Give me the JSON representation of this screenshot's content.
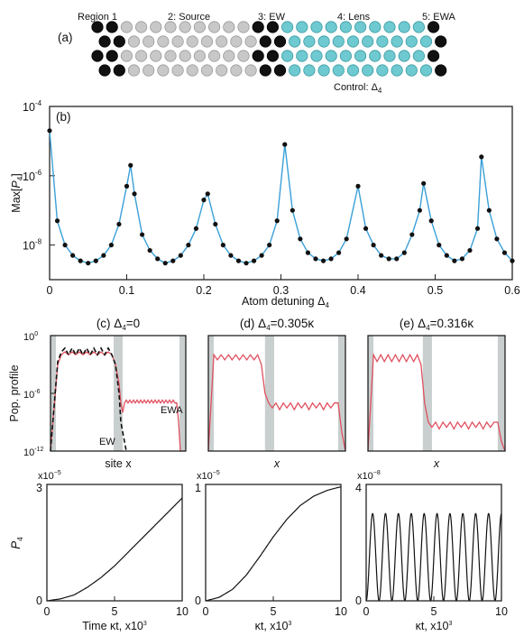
{
  "colors": {
    "black_atom": "#111111",
    "grey_atom": "#c8c8c8",
    "cyan_atom": "#6ec9d0",
    "blue_line": "#3aa0d8",
    "red_line": "#e0505f",
    "shade": "#c9cfcf"
  },
  "panel_a": {
    "label": "(a)",
    "regions": [
      "Region 1",
      "2: Source",
      "3: EW",
      "4: Lens",
      "5: EWA"
    ],
    "control": "Control: Δ",
    "control_sub": "4"
  },
  "panel_b": {
    "label": "(b)",
    "ylabel_pre": "Max[",
    "ylabel_var": "P",
    "ylabel_sub": "4",
    "ylabel_post": "]",
    "xlabel": "Atom detuning Δ",
    "xlabel_sub": "4",
    "yticks": [
      {
        "base": "10",
        "exp": "-4"
      },
      {
        "base": "10",
        "exp": "-6"
      },
      {
        "base": "10",
        "exp": "-8"
      }
    ],
    "xticks": [
      "0",
      "0.1",
      "0.2",
      "0.3",
      "0.4",
      "0.5",
      "0.6"
    ]
  },
  "panels_cde": [
    {
      "title": "(c) Δ",
      "title_sub": "4",
      "title_rest": "=0",
      "xlabel": "site x",
      "ylabel": "Pop. profile",
      "yticks": [
        {
          "base": "10",
          "exp": "0"
        },
        {
          "base": "10",
          "exp": "-6"
        },
        {
          "base": "10",
          "exp": "-12"
        }
      ],
      "ann_ewa": "EWA",
      "ann_ew": "EW"
    },
    {
      "title": "(d) Δ",
      "title_sub": "4",
      "title_rest": "=0.305κ",
      "xlabel": "x"
    },
    {
      "title": "(e) Δ",
      "title_sub": "4",
      "title_rest": "=0.316κ",
      "xlabel": "x"
    }
  ],
  "panels_fgh": [
    {
      "scale_base": "x10",
      "scale_exp": "−5",
      "ymax_label": "3",
      "ymin_label": "0",
      "ylabel": "P",
      "ylabel_sub": "4",
      "xlabel": "Time κt, x10",
      "xlabel_exp": "3",
      "xticks": [
        "0",
        "5",
        "10"
      ]
    },
    {
      "scale_base": "x10",
      "scale_exp": "−5",
      "ymax_label": "1",
      "ymin_label": "0",
      "xlabel": "κt, x10",
      "xlabel_exp": "3",
      "xticks": [
        "0",
        "5",
        "10"
      ]
    },
    {
      "scale_base": "x10",
      "scale_exp": "−8",
      "ymax_label": "4",
      "ymin_label": "0",
      "xlabel": "κt, x10",
      "xlabel_exp": "3",
      "xticks": [
        "0",
        "5",
        "10"
      ]
    }
  ],
  "chart_data": [
    {
      "type": "line",
      "title": "",
      "xlabel": "Atom detuning Δ4",
      "ylabel": "Max[P4]",
      "xlim": [
        0,
        0.6
      ],
      "ylim": [
        1e-09,
        0.0001
      ],
      "yscale": "log",
      "series": [
        {
          "marker": "dot",
          "color": "#3aa0d8",
          "x": [
            0,
            0.01,
            0.02,
            0.03,
            0.04,
            0.05,
            0.06,
            0.07,
            0.08,
            0.09,
            0.1,
            0.105,
            0.11,
            0.12,
            0.13,
            0.14,
            0.15,
            0.16,
            0.17,
            0.18,
            0.19,
            0.2,
            0.205,
            0.215,
            0.225,
            0.235,
            0.245,
            0.255,
            0.265,
            0.275,
            0.285,
            0.295,
            0.305,
            0.315,
            0.325,
            0.335,
            0.345,
            0.355,
            0.365,
            0.375,
            0.385,
            0.4,
            0.41,
            0.42,
            0.43,
            0.44,
            0.45,
            0.46,
            0.47,
            0.48,
            0.485,
            0.495,
            0.505,
            0.515,
            0.525,
            0.535,
            0.545,
            0.555,
            0.56,
            0.57,
            0.58,
            0.59,
            0.6
          ],
          "y": [
            2e-05,
            5e-08,
            1e-08,
            5e-09,
            3.5e-09,
            3e-09,
            3.5e-09,
            5e-09,
            1e-08,
            4e-08,
            5e-07,
            2e-06,
            3e-07,
            2e-08,
            7e-09,
            4e-09,
            3e-09,
            3.5e-09,
            5e-09,
            1e-08,
            3e-08,
            2e-07,
            3e-07,
            4e-08,
            1e-08,
            5e-09,
            3.5e-09,
            3e-09,
            3.5e-09,
            5e-09,
            1e-08,
            5e-08,
            8e-06,
            1e-07,
            1.5e-08,
            6e-09,
            4e-09,
            3.5e-09,
            4e-09,
            6e-09,
            1.5e-08,
            5e-07,
            3e-08,
            1e-08,
            5e-09,
            4e-09,
            4e-09,
            6e-09,
            2e-08,
            1e-07,
            6e-07,
            5e-08,
            1e-08,
            5e-09,
            3.5e-09,
            4e-09,
            7e-09,
            3e-08,
            3.5e-06,
            1e-07,
            1.5e-08,
            6e-09,
            3.5e-09
          ]
        }
      ]
    },
    {
      "type": "line",
      "title": "",
      "xlabel": "site x",
      "ylabel": "Pop. profile",
      "ylim": [
        1e-12,
        1
      ],
      "yscale": "log",
      "series": [
        {
          "style": "solid",
          "color": "#e0505f",
          "x": [
            0,
            0.08,
            0.12,
            0.16,
            0.2,
            0.24,
            0.28,
            0.32,
            0.36,
            0.4,
            0.44,
            0.48,
            0.52,
            0.56,
            0.6,
            0.64,
            0.68,
            0.72,
            0.76,
            0.78,
            0.8,
            0.82,
            0.84,
            0.86,
            0.88,
            0.9,
            0.92,
            0.94,
            0.96,
            0.98,
            1.0,
            1.02,
            1.04,
            1.06,
            1.08,
            1.1,
            1.12,
            1.14,
            1.16,
            1.18,
            1.2,
            1.22,
            1.24,
            1.26,
            1.28,
            1.3,
            1.32,
            1.34,
            1.36,
            1.38,
            1.4,
            1.42,
            1.44,
            1.46,
            1.48,
            1.5
          ],
          "y": [
            1e-12,
            0.001,
            0.01,
            0.02,
            0.01,
            0.02,
            0.01,
            0.02,
            0.01,
            0.02,
            0.01,
            0.02,
            0.01,
            0.02,
            0.01,
            0.02,
            0.01,
            0.001,
            1e-05,
            1e-07,
            1e-08,
            1e-07,
            2e-07,
            1e-07,
            2e-07,
            1e-07,
            2e-07,
            1e-07,
            2e-07,
            1e-07,
            2e-07,
            1e-07,
            2e-07,
            1e-07,
            2e-07,
            1e-07,
            2e-07,
            1e-07,
            2e-07,
            1e-07,
            2e-07,
            1e-07,
            2e-07,
            1e-07,
            2e-07,
            1e-07,
            2e-07,
            1e-07,
            2e-07,
            1e-07,
            1e-07,
            1e-09,
            1e-12,
            1e-12,
            1e-12,
            1e-12
          ]
        },
        {
          "style": "dashed",
          "color": "#111111",
          "x": [
            0,
            0.08,
            0.12,
            0.16,
            0.2,
            0.24,
            0.28,
            0.32,
            0.36,
            0.4,
            0.44,
            0.48,
            0.52,
            0.56,
            0.6,
            0.64,
            0.68,
            0.72,
            0.76,
            0.78,
            0.8,
            0.82,
            0.84
          ],
          "y": [
            1e-12,
            0.002,
            0.02,
            0.05,
            0.01,
            0.05,
            0.01,
            0.05,
            0.01,
            0.05,
            0.01,
            0.05,
            0.01,
            0.05,
            0.01,
            0.05,
            0.01,
            0.001,
            1e-06,
            1e-09,
            1e-10,
            1e-11,
            1e-12
          ]
        }
      ]
    },
    {
      "type": "line",
      "title": "",
      "xlabel": "x",
      "ylim": [
        1e-12,
        1
      ],
      "yscale": "log",
      "series": [
        {
          "style": "solid",
          "color": "#e0505f",
          "x": [
            0,
            0.06,
            0.1,
            0.14,
            0.18,
            0.22,
            0.26,
            0.3,
            0.34,
            0.38,
            0.42,
            0.46,
            0.5,
            0.54,
            0.58,
            0.62,
            0.66,
            0.7,
            0.74,
            0.78,
            0.82,
            0.86,
            0.9,
            0.94,
            0.98,
            1.02,
            1.06,
            1.1,
            1.14,
            1.18,
            1.22,
            1.26,
            1.3,
            1.34,
            1.38,
            1.42,
            1.46,
            1.5
          ],
          "y": [
            1e-12,
            0.01,
            0.003,
            0.01,
            0.003,
            0.01,
            0.003,
            0.01,
            0.003,
            0.01,
            0.003,
            0.01,
            0.003,
            0.01,
            0.001,
            1e-06,
            1e-07,
            3e-08,
            1e-07,
            2e-08,
            1e-07,
            3e-08,
            1e-07,
            2e-08,
            1e-07,
            3e-08,
            1e-07,
            2e-08,
            1e-07,
            3e-08,
            1e-07,
            2e-08,
            1e-07,
            3e-08,
            1e-07,
            1e-07,
            1e-10,
            1e-12
          ]
        }
      ]
    },
    {
      "type": "line",
      "title": "",
      "xlabel": "x",
      "ylim": [
        1e-12,
        1
      ],
      "yscale": "log",
      "series": [
        {
          "style": "solid",
          "color": "#e0505f",
          "x": [
            0,
            0.06,
            0.1,
            0.14,
            0.18,
            0.22,
            0.26,
            0.3,
            0.34,
            0.38,
            0.42,
            0.46,
            0.5,
            0.54,
            0.58,
            0.62,
            0.66,
            0.7,
            0.74,
            0.78,
            0.82,
            0.86,
            0.9,
            0.94,
            0.98,
            1.02,
            1.06,
            1.1,
            1.14,
            1.18,
            1.22,
            1.26,
            1.3,
            1.34,
            1.38,
            1.42,
            1.46,
            1.5
          ],
          "y": [
            1e-12,
            0.01,
            0.002,
            0.01,
            0.002,
            0.01,
            0.002,
            0.01,
            0.002,
            0.01,
            0.002,
            0.01,
            0.002,
            0.01,
            0.001,
            1e-07,
            1e-09,
            3e-10,
            1e-09,
            2e-10,
            1e-09,
            3e-10,
            1e-09,
            2e-10,
            1e-09,
            3e-10,
            1e-09,
            2e-10,
            1e-09,
            3e-10,
            1e-09,
            2e-10,
            1e-09,
            3e-10,
            1e-09,
            1e-09,
            1e-11,
            1e-12
          ]
        }
      ]
    },
    {
      "type": "line",
      "title": "",
      "xlabel": "Time κt, x10^3",
      "ylabel": "P4",
      "xlim": [
        0,
        10
      ],
      "ylim": [
        0,
        3
      ],
      "y_scale_factor": "x10^-5",
      "series": [
        {
          "color": "#111111",
          "x": [
            0,
            1,
            2,
            3,
            4,
            5,
            6,
            7,
            8,
            9,
            10
          ],
          "y": [
            0,
            0.05,
            0.15,
            0.35,
            0.6,
            0.9,
            1.25,
            1.6,
            1.95,
            2.3,
            2.65
          ]
        }
      ]
    },
    {
      "type": "line",
      "title": "",
      "xlabel": "κt, x10^3",
      "xlim": [
        0,
        10
      ],
      "ylim": [
        0,
        1
      ],
      "y_scale_factor": "x10^-5",
      "series": [
        {
          "color": "#111111",
          "x": [
            0,
            1,
            2,
            3,
            4,
            5,
            6,
            7,
            8,
            9,
            10
          ],
          "y": [
            0,
            0.03,
            0.1,
            0.22,
            0.38,
            0.55,
            0.7,
            0.82,
            0.9,
            0.95,
            0.98
          ]
        }
      ]
    },
    {
      "type": "line",
      "title": "",
      "xlabel": "κt, x10^3",
      "xlim": [
        0,
        10
      ],
      "ylim": [
        0,
        4
      ],
      "y_scale_factor": "x10^-8",
      "oscillation": {
        "amplitude": 3.0,
        "periods": 10.5
      }
    }
  ]
}
